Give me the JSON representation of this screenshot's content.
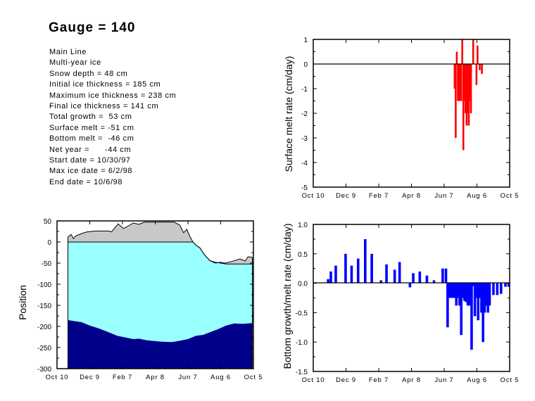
{
  "header": {
    "title": "Gauge = 140",
    "info_lines": [
      "Main Line",
      "Multi-year ice",
      "Snow depth = 48 cm",
      "Initial ice thickness = 185 cm",
      "Maximum ice thickness = 238 cm",
      "Final ice thickness = 141 cm",
      "Total growth =  53 cm",
      "Surface melt = -51 cm",
      "Bottom melt =  -46 cm",
      "Net year =      -44 cm",
      "Start date = 10/30/97",
      "Max ice date = 6/2/98",
      "End date = 10/6/98"
    ]
  },
  "colors": {
    "surface_bars": "#ff0000",
    "bottom_bars": "#0000ff",
    "snow": "#c8c8c8",
    "ice": "#99ffff",
    "water": "#00008b"
  },
  "chart_data": [
    {
      "type": "bar",
      "name": "surface-melt",
      "title": "",
      "xlabel": "",
      "ylabel": "Surface melt rate (cm/day)",
      "x_units": "days since Oct 10",
      "xlim": [
        0,
        360
      ],
      "ylim": [
        -5,
        1
      ],
      "yticks": [
        1,
        0,
        -1,
        -2,
        -3,
        -4,
        -5
      ],
      "xtick_labels": [
        "Oct 10",
        "Dec 9",
        "Feb 7",
        "Apr 8",
        "Jun 7",
        "Aug 6",
        "Oct 5"
      ],
      "x": [
        259,
        261,
        263,
        265,
        267,
        269,
        271,
        273,
        275,
        277,
        279,
        281,
        283,
        285,
        287,
        289,
        291,
        293,
        295,
        297,
        299,
        301,
        303,
        305,
        307,
        309
      ],
      "values": [
        -1.0,
        -3.0,
        0.5,
        -1.5,
        -1.5,
        -1.5,
        -1.5,
        1.0,
        -3.5,
        -1.5,
        -2.0,
        -2.5,
        -2.0,
        -2.5,
        -1.5,
        -2.0,
        0.0,
        1.0,
        0.0,
        0.0,
        -0.85,
        0.75,
        0.0,
        -0.25,
        0.0,
        -0.4
      ]
    },
    {
      "type": "bar",
      "name": "bottom-growth-melt",
      "title": "",
      "xlabel": "",
      "ylabel": "Bottom growth/melt rate (cm/day)",
      "x_units": "days since Oct 10",
      "xlim": [
        0,
        360
      ],
      "ylim": [
        -1.5,
        1.0
      ],
      "yticks": [
        "1.0",
        "0.5",
        "0.0",
        "-0.5",
        "-1.0",
        "-1.5"
      ],
      "xtick_labels": [
        "Oct 10",
        "Dec 9",
        "Feb 7",
        "Apr 8",
        "Jun 7",
        "Aug 6",
        "Oct 5"
      ],
      "x": [
        27,
        32,
        41,
        59,
        70,
        82,
        95,
        107,
        124,
        134,
        149,
        158,
        177,
        183,
        195,
        208,
        221,
        237,
        243,
        246,
        249,
        253,
        256,
        259,
        262,
        265,
        268,
        271,
        274,
        277,
        280,
        283,
        286,
        290,
        293,
        296,
        299,
        302,
        305,
        308,
        311,
        314,
        317,
        320,
        323,
        330,
        337,
        344,
        352,
        358
      ],
      "values": [
        0.07,
        0.2,
        0.3,
        0.5,
        0.3,
        0.42,
        0.75,
        0.5,
        0.05,
        0.32,
        0.23,
        0.36,
        -0.07,
        0.17,
        0.2,
        0.13,
        0.05,
        0.25,
        0.25,
        -0.75,
        -0.25,
        -0.25,
        -0.25,
        -0.25,
        -0.38,
        -0.25,
        -0.38,
        -0.88,
        -0.25,
        -0.3,
        -0.32,
        -0.38,
        -0.38,
        -1.13,
        -0.05,
        -0.56,
        -0.25,
        -0.63,
        -0.25,
        -0.5,
        -1.0,
        -0.5,
        -0.38,
        -0.5,
        -0.38,
        -0.2,
        -0.2,
        -0.18,
        -0.06,
        -0.06
      ]
    },
    {
      "type": "area",
      "name": "position",
      "title": "",
      "xlabel": "",
      "ylabel": "Position",
      "x_units": "days since Oct 10",
      "xlim": [
        0,
        360
      ],
      "ylim": [
        -300,
        50
      ],
      "yticks": [
        50,
        0,
        -50,
        -100,
        -150,
        -200,
        -250,
        -300
      ],
      "xtick_labels": [
        "Oct 10",
        "Dec 9",
        "Feb 7",
        "Apr 8",
        "Jun 7",
        "Aug 6",
        "Oct 5"
      ],
      "series": [
        {
          "name": "snow surface",
          "x": [
            20,
            26,
            30,
            34,
            45,
            55,
            70,
            95,
            100,
            112,
            122,
            140,
            150,
            160,
            175,
            185,
            215,
            225,
            232,
            238,
            244,
            249,
            255,
            262,
            270,
            280,
            290,
            300,
            308,
            318,
            328,
            335,
            345,
            350,
            358
          ],
          "values": [
            12,
            18,
            8,
            14,
            20,
            24,
            26,
            26,
            24,
            43,
            32,
            45,
            42,
            47,
            47,
            47,
            47,
            40,
            22,
            30,
            12,
            0,
            -8,
            -14,
            -30,
            -44,
            -50,
            -48,
            -50,
            -47,
            -43,
            -40,
            -45,
            -35,
            -36
          ]
        },
        {
          "name": "ice surface",
          "x": [
            20,
            249,
            255,
            262,
            270,
            280,
            290,
            300,
            310,
            358
          ],
          "values": [
            0,
            0,
            -8,
            -14,
            -30,
            -44,
            -48,
            -50,
            -52,
            -52
          ]
        },
        {
          "name": "ice bottom",
          "x": [
            20,
            30,
            45,
            60,
            75,
            95,
            110,
            125,
            140,
            150,
            165,
            190,
            210,
            225,
            240,
            255,
            268,
            282,
            296,
            310,
            325,
            340,
            358
          ],
          "values": [
            -185,
            -187,
            -190,
            -198,
            -204,
            -214,
            -222,
            -226,
            -230,
            -229,
            -233,
            -236,
            -237,
            -234,
            -230,
            -222,
            -220,
            -213,
            -206,
            -198,
            -193,
            -194,
            -192
          ]
        }
      ]
    }
  ]
}
